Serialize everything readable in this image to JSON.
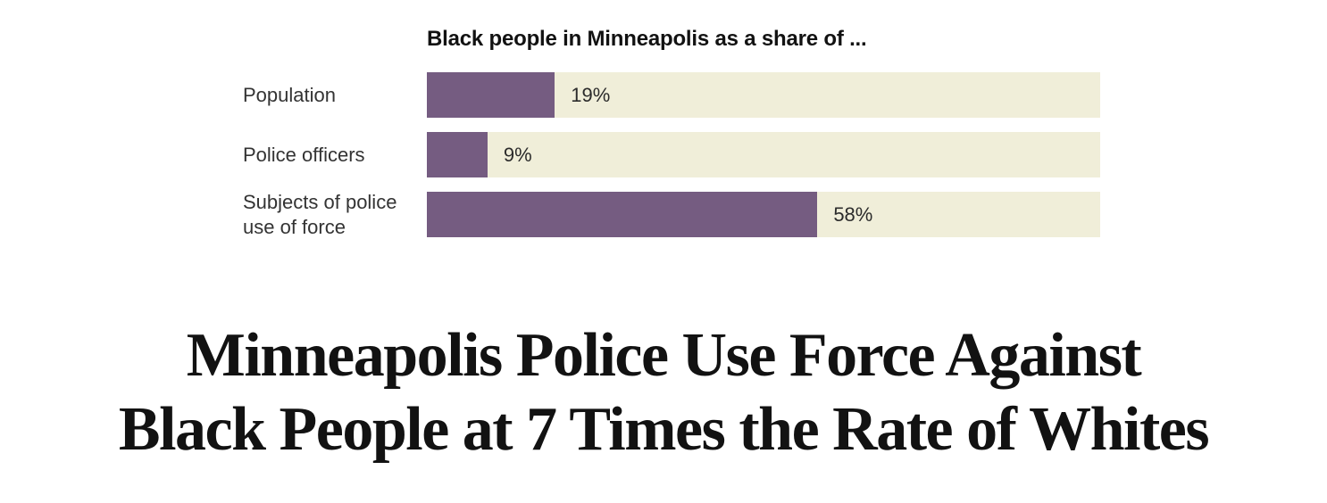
{
  "chart_data": {
    "type": "bar",
    "orientation": "horizontal",
    "title": "Black people in Minneapolis as a share of ...",
    "categories": [
      "Population",
      "Police officers",
      "Subjects of police use of force"
    ],
    "values": [
      19,
      9,
      58
    ],
    "value_labels": [
      "19%",
      "9%",
      "58%"
    ],
    "xlim": [
      0,
      100
    ],
    "grid": false,
    "legend": false,
    "colors": {
      "bar": "#755c81",
      "track": "#f0eed9",
      "title_text": "#121212",
      "category_text": "#333333",
      "value_text": "#2b2b2b"
    }
  },
  "headline": {
    "lines": [
      "Minneapolis Police Use Force Against",
      "Black People at 7 Times the Rate of Whites"
    ]
  }
}
